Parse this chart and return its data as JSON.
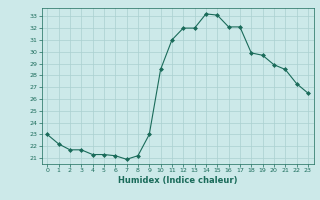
{
  "x": [
    0,
    1,
    2,
    3,
    4,
    5,
    6,
    7,
    8,
    9,
    10,
    11,
    12,
    13,
    14,
    15,
    16,
    17,
    18,
    19,
    20,
    21,
    22,
    23
  ],
  "y": [
    23.0,
    22.2,
    21.7,
    21.7,
    21.3,
    21.3,
    21.2,
    20.9,
    21.2,
    23.0,
    28.5,
    31.0,
    32.0,
    32.0,
    33.2,
    33.1,
    32.1,
    32.1,
    29.9,
    29.7,
    28.9,
    28.5,
    27.3,
    26.5
  ],
  "line_color": "#1a6b5a",
  "marker": "D",
  "marker_size": 2,
  "bg_color": "#cce9e9",
  "grid_color": "#aad0d0",
  "xlabel": "Humidex (Indice chaleur)",
  "ylim": [
    20.5,
    33.7
  ],
  "xlim": [
    -0.5,
    23.5
  ],
  "yticks": [
    21,
    22,
    23,
    24,
    25,
    26,
    27,
    28,
    29,
    30,
    31,
    32,
    33
  ],
  "xticks": [
    0,
    1,
    2,
    3,
    4,
    5,
    6,
    7,
    8,
    9,
    10,
    11,
    12,
    13,
    14,
    15,
    16,
    17,
    18,
    19,
    20,
    21,
    22,
    23
  ]
}
